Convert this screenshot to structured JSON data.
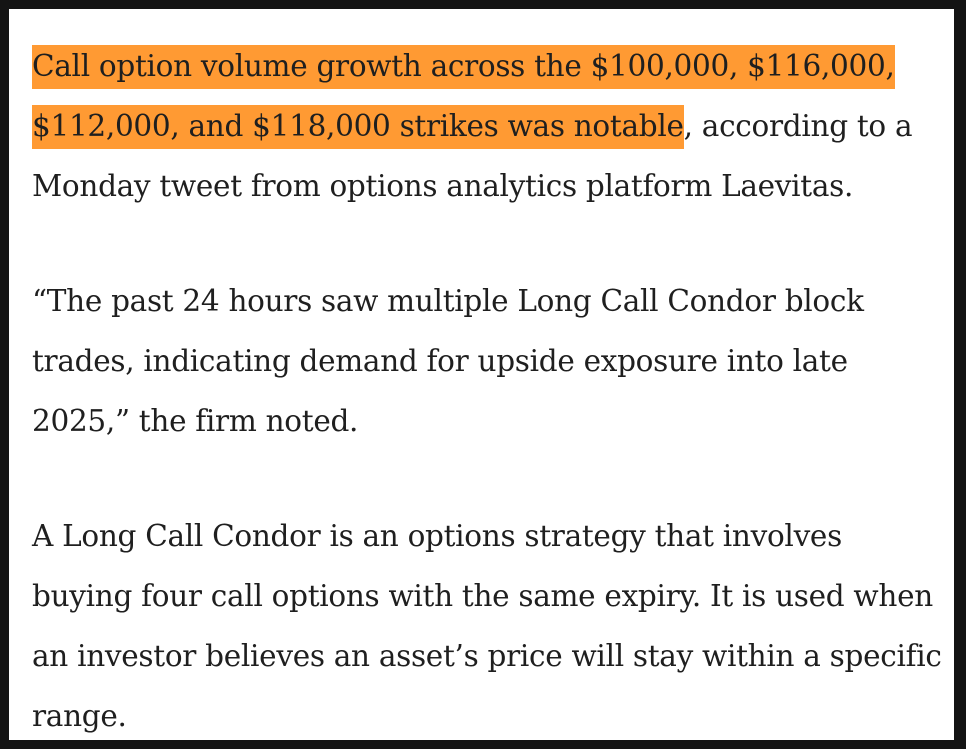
{
  "article": {
    "paragraphs": [
      {
        "highlight": "Call option volume growth across the $100,000, $116,000, $112,000, and $118,000 strikes was notable",
        "rest": ", according to a Monday tweet from options analytics platform Laevitas."
      },
      {
        "text": "“The past 24 hours saw multiple Long Call Condor block trades, indicating demand for upside exposure into late 2025,” the firm noted."
      },
      {
        "text": "A Long Call Condor is an options strategy that involves buying four call options with the same expiry. It is used when an investor believes an asset’s price will stay within a specific range."
      }
    ]
  },
  "colors": {
    "highlight": "#ff9a33",
    "text": "#1f1f1f",
    "background": "#ffffff",
    "border": "#141414"
  }
}
